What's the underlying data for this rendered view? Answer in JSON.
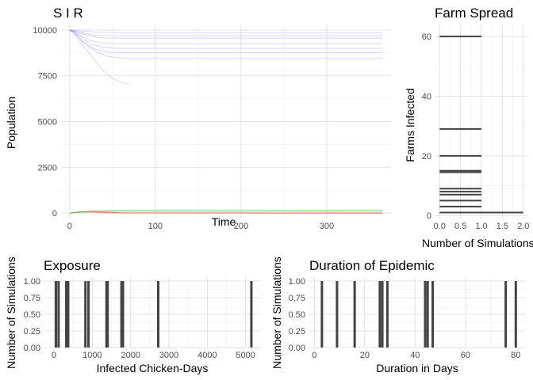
{
  "chart_data": [
    {
      "id": "sir",
      "type": "line",
      "title": "S I R",
      "xlabel": "Time",
      "ylabel": "Population",
      "xlim": [
        -10,
        375
      ],
      "ylim": [
        -300,
        10300
      ],
      "xticks": [
        0,
        100,
        200,
        300
      ],
      "yticks": [
        0,
        2500,
        5000,
        7500,
        10000
      ],
      "grid": true,
      "legend": "none",
      "colors": {
        "S": "#6b6bff",
        "I": "#e8433a",
        "R": "#4ac94a"
      },
      "series": [
        {
          "group": "S",
          "x": [
            0,
            2,
            10,
            20,
            30,
            45,
            60,
            365
          ],
          "y": [
            10000,
            9990,
            9960,
            9930,
            9900,
            9880,
            9860,
            9860
          ]
        },
        {
          "group": "S",
          "x": [
            0,
            3,
            10,
            20,
            30,
            40,
            55,
            365
          ],
          "y": [
            10000,
            9985,
            9900,
            9800,
            9720,
            9700,
            9690,
            9690
          ]
        },
        {
          "group": "S",
          "x": [
            0,
            5,
            15,
            25,
            35,
            45,
            365
          ],
          "y": [
            10000,
            9960,
            9800,
            9650,
            9580,
            9560,
            9560
          ]
        },
        {
          "group": "S",
          "x": [
            0,
            5,
            15,
            25,
            40,
            55,
            365
          ],
          "y": [
            10000,
            9930,
            9650,
            9400,
            9280,
            9250,
            9250
          ]
        },
        {
          "group": "S",
          "x": [
            0,
            5,
            15,
            25,
            40,
            55,
            365
          ],
          "y": [
            10000,
            9900,
            9550,
            9250,
            9050,
            9000,
            9000
          ]
        },
        {
          "group": "S",
          "x": [
            0,
            5,
            15,
            30,
            50,
            365
          ],
          "y": [
            10000,
            9880,
            9400,
            8950,
            8750,
            8750
          ]
        },
        {
          "group": "S",
          "x": [
            0,
            5,
            15,
            30,
            45,
            65,
            365
          ],
          "y": [
            10000,
            9870,
            9350,
            8850,
            8550,
            8450,
            8450
          ]
        },
        {
          "group": "S",
          "x": [
            0,
            5,
            10,
            20,
            30,
            40,
            50,
            60,
            70
          ],
          "y": [
            10000,
            9780,
            9450,
            8900,
            8300,
            7750,
            7350,
            7150,
            7050
          ]
        },
        {
          "group": "I",
          "x": [
            0,
            10,
            25,
            40,
            60,
            365
          ],
          "y": [
            0,
            60,
            90,
            50,
            10,
            0
          ]
        },
        {
          "group": "I",
          "x": [
            0,
            10,
            20,
            35,
            55,
            365
          ],
          "y": [
            0,
            40,
            60,
            30,
            5,
            0
          ]
        },
        {
          "group": "R",
          "x": [
            0,
            15,
            30,
            50,
            70,
            365
          ],
          "y": [
            0,
            80,
            120,
            150,
            160,
            160
          ]
        },
        {
          "group": "R",
          "x": [
            0,
            15,
            30,
            50,
            365
          ],
          "y": [
            0,
            40,
            70,
            90,
            90
          ]
        }
      ]
    },
    {
      "id": "farm",
      "type": "bar",
      "orientation": "horizontal",
      "title": "Farm Spread",
      "xlabel": "Number of Simulations",
      "ylabel": "Farms Infected",
      "xlim": [
        -0.1,
        2.1
      ],
      "ylim": [
        -1,
        64
      ],
      "xticks": [
        0.0,
        0.5,
        1.0,
        1.5,
        2.0
      ],
      "xticklabels": [
        "0.0",
        "0.5",
        "1.0",
        "1.5",
        "2.0"
      ],
      "yticks": [
        0,
        20,
        40,
        60
      ],
      "bar_color": "#434343",
      "bars": [
        {
          "y": 60,
          "count": 1
        },
        {
          "y": 29,
          "count": 1
        },
        {
          "y": 20,
          "count": 1
        },
        {
          "y": 15,
          "count": 1
        },
        {
          "y": 14.5,
          "count": 1
        },
        {
          "y": 9,
          "count": 1
        },
        {
          "y": 8,
          "count": 1
        },
        {
          "y": 7,
          "count": 1
        },
        {
          "y": 5,
          "count": 1
        },
        {
          "y": 3,
          "count": 1
        },
        {
          "y": 1,
          "count": 2
        }
      ]
    },
    {
      "id": "exposure",
      "type": "bar",
      "title": "Exposure",
      "xlabel": "Infected Chicken-Days",
      "ylabel": "Number of Simulations",
      "xlim": [
        -250,
        5400
      ],
      "ylim": [
        0,
        1.06
      ],
      "xticks": [
        0,
        1000,
        2000,
        3000,
        4000,
        5000
      ],
      "yticks": [
        0,
        0.25,
        0.5,
        0.75,
        1.0
      ],
      "yticklabels": [
        "0.00",
        "0.25",
        "0.50",
        "0.75",
        "1.00"
      ],
      "bar_color": "#434343",
      "bars": [
        {
          "x": 50,
          "count": 1
        },
        {
          "x": 120,
          "count": 1
        },
        {
          "x": 320,
          "count": 1
        },
        {
          "x": 370,
          "count": 1
        },
        {
          "x": 820,
          "count": 1
        },
        {
          "x": 900,
          "count": 1
        },
        {
          "x": 1370,
          "count": 1
        },
        {
          "x": 1400,
          "count": 1
        },
        {
          "x": 1760,
          "count": 1
        },
        {
          "x": 1800,
          "count": 1
        },
        {
          "x": 2720,
          "count": 1
        },
        {
          "x": 5150,
          "count": 1
        }
      ]
    },
    {
      "id": "duration",
      "type": "bar",
      "title": "Duration of Epidemic",
      "xlabel": "Duration in Days",
      "ylabel": "Number of Simulations",
      "xlim": [
        -2,
        84
      ],
      "ylim": [
        0,
        1.06
      ],
      "xticks": [
        0,
        20,
        40,
        60,
        80
      ],
      "yticks": [
        0,
        0.25,
        0.5,
        0.75,
        1.0
      ],
      "yticklabels": [
        "0.00",
        "0.25",
        "0.50",
        "0.75",
        "1.00"
      ],
      "bar_color": "#434343",
      "bars": [
        {
          "x": 3,
          "count": 1
        },
        {
          "x": 9,
          "count": 1
        },
        {
          "x": 16,
          "count": 1
        },
        {
          "x": 26,
          "count": 1
        },
        {
          "x": 27,
          "count": 1
        },
        {
          "x": 29,
          "count": 1
        },
        {
          "x": 44,
          "count": 1
        },
        {
          "x": 45,
          "count": 1
        },
        {
          "x": 47,
          "count": 1
        },
        {
          "x": 76,
          "count": 1
        },
        {
          "x": 80,
          "count": 1
        }
      ]
    }
  ]
}
